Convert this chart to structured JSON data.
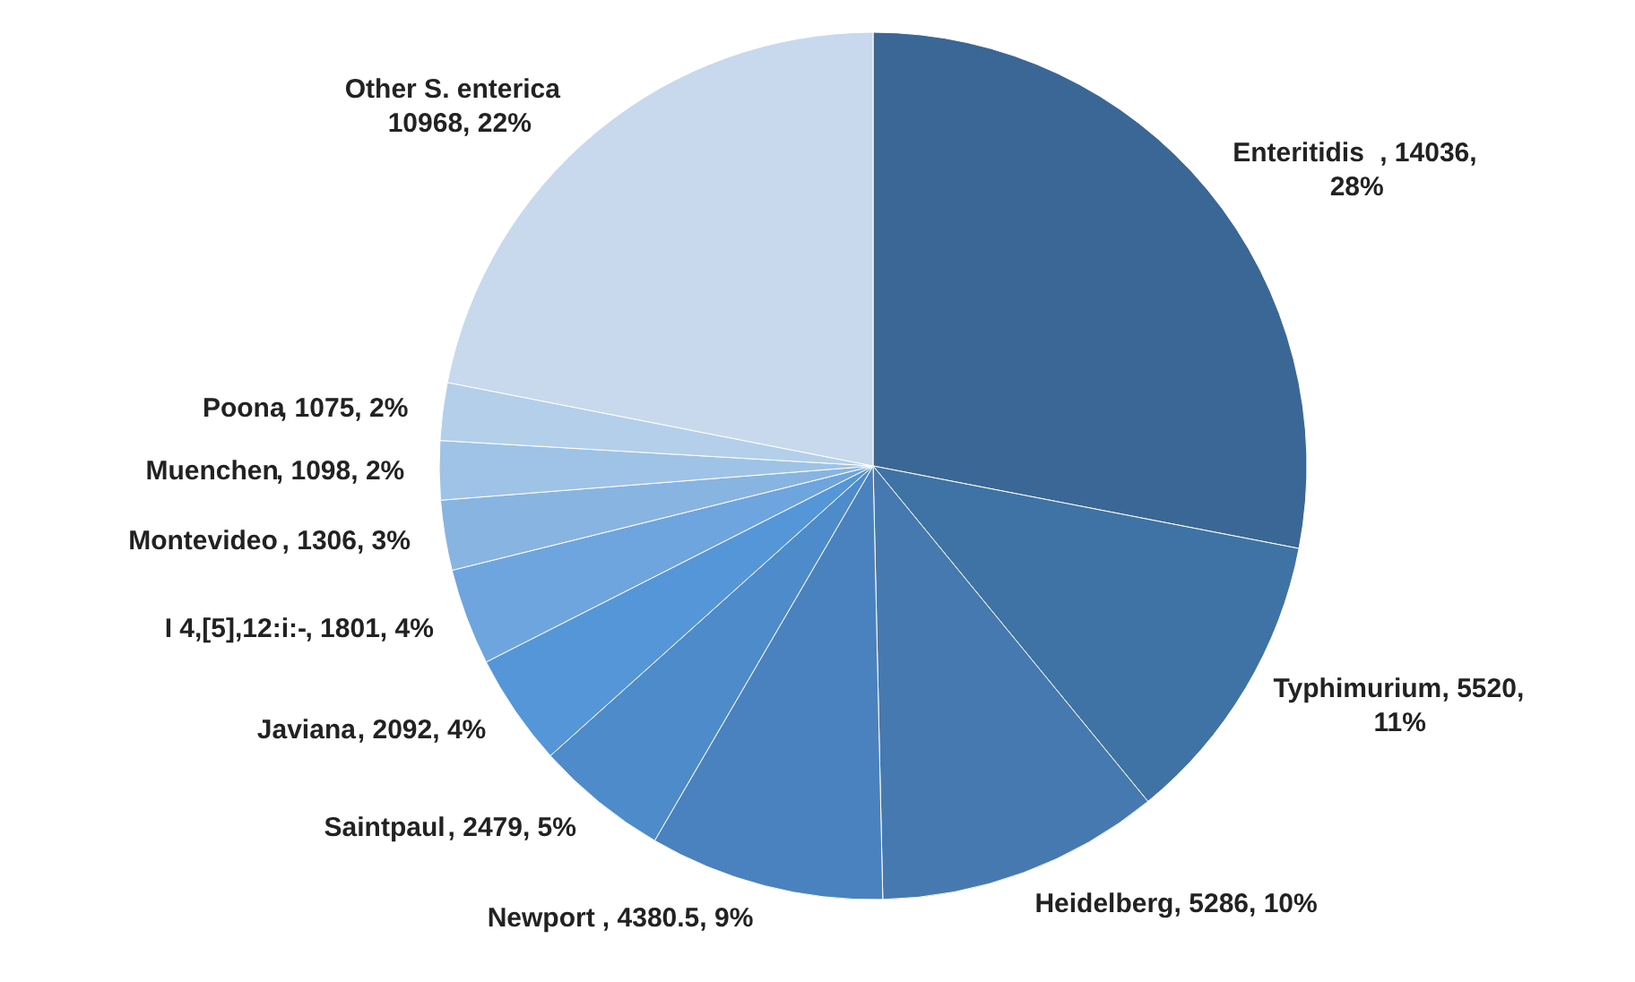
{
  "chart_data": {
    "type": "pie",
    "categories": [
      "Enteritidis",
      "Typhimurium",
      "Heidelberg",
      "Newport",
      "Saintpaul",
      "Javiana",
      "I 4,[5],12:i:-",
      "Montevideo",
      "Muenchen",
      "Poona",
      "Other S. enterica"
    ],
    "values": [
      14036,
      5520,
      5286,
      4380.5,
      2479,
      2092,
      1801,
      1306,
      1098,
      1075,
      10968
    ],
    "value_labels": [
      ", 14036,\n28%",
      ", 5520,\n11%",
      ", 5286, 10%",
      ", 4380.5, 9%",
      ", 2479, 5%",
      ", 2092, 4%",
      ", 1801, 4%",
      ", 1306, 3%",
      ", 1098, 2%",
      ", 1075, 2%",
      "\n10968, 22%"
    ],
    "colors": [
      "#3a6795",
      "#3f72a5",
      "#4679b0",
      "#4a82bf",
      "#4e8bcb",
      "#5496d8",
      "#6ea5de",
      "#88b4e2",
      "#9fc2e7",
      "#b3cfea",
      "#c8d9ed"
    ]
  }
}
